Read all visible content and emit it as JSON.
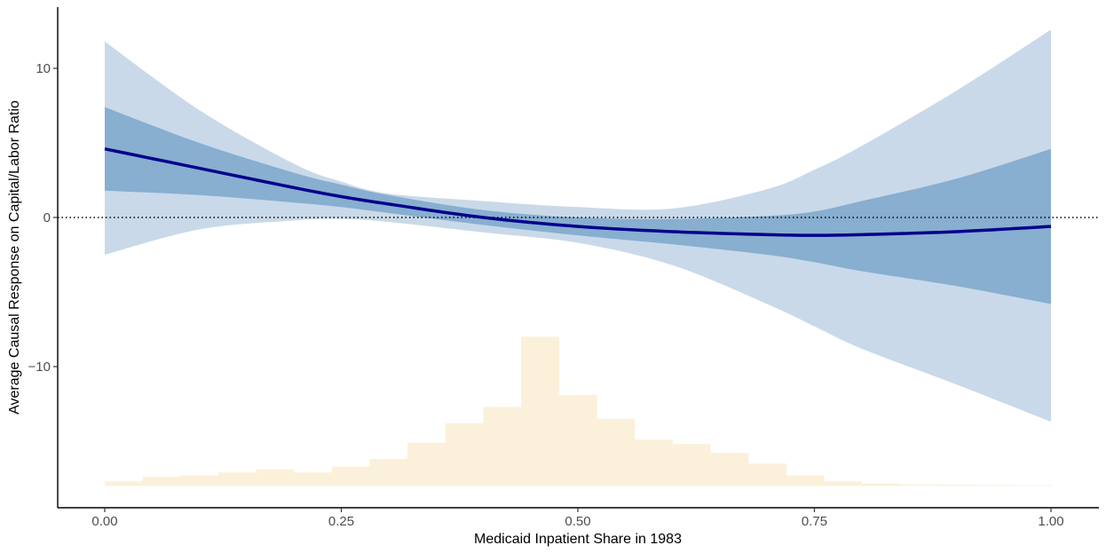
{
  "chart_data": {
    "type": "line",
    "title": "",
    "xlabel": "Medicaid Inpatient Share in 1983",
    "ylabel": "Average Causal Response on Capital/Labor Ratio",
    "xlim": [
      -0.1,
      1.1
    ],
    "ylim": [
      -19.5,
      14
    ],
    "x_ticks": [
      {
        "value": 0,
        "label": "0.00"
      },
      {
        "value": 0.25,
        "label": "0.25"
      },
      {
        "value": 0.5,
        "label": "0.50"
      },
      {
        "value": 0.75,
        "label": "0.75"
      },
      {
        "value": 1.0,
        "label": "1.00"
      }
    ],
    "y_ticks": [
      {
        "value": 10,
        "label": "10"
      },
      {
        "value": 0,
        "label": "0"
      },
      {
        "value": -10,
        "label": "−10"
      }
    ],
    "reference_line": {
      "y": 0,
      "style": "dotted"
    },
    "grid": false,
    "colors": {
      "estimate": "#00008b",
      "inner_band": "#88aed0",
      "outer_band": "#c9d9e9",
      "histogram": "#fbf0da",
      "reference": "#000000",
      "axis": "#000000"
    },
    "x": [
      0.0,
      0.1,
      0.2,
      0.25,
      0.3,
      0.4,
      0.5,
      0.6,
      0.7,
      0.75,
      0.8,
      0.9,
      1.0
    ],
    "series": [
      {
        "role": "estimate",
        "values": [
          4.6,
          3.3,
          2.0,
          1.4,
          0.9,
          0.0,
          -0.6,
          -0.95,
          -1.15,
          -1.2,
          -1.15,
          -0.95,
          -0.6
        ]
      },
      {
        "role": "inner_lower",
        "values": [
          1.8,
          1.5,
          1.0,
          0.7,
          0.3,
          -0.5,
          -1.2,
          -1.8,
          -2.5,
          -3.0,
          -3.6,
          -4.6,
          -5.8
        ]
      },
      {
        "role": "inner_upper",
        "values": [
          7.4,
          5.0,
          3.0,
          2.2,
          1.5,
          0.5,
          0.0,
          -0.1,
          0.1,
          0.4,
          1.1,
          2.6,
          4.6
        ]
      },
      {
        "role": "outer_lower",
        "values": [
          -2.5,
          -0.8,
          -0.2,
          -0.1,
          -0.3,
          -1.0,
          -1.7,
          -3.2,
          -5.8,
          -7.3,
          -8.8,
          -11.2,
          -13.7
        ]
      },
      {
        "role": "outer_upper",
        "values": [
          11.8,
          7.2,
          3.6,
          2.4,
          1.6,
          1.1,
          0.7,
          0.6,
          1.9,
          3.2,
          4.8,
          8.5,
          12.6
        ]
      }
    ],
    "histogram": {
      "baseline": -18,
      "bin_width": 0.04,
      "bin_starts": [
        0.0,
        0.04,
        0.08,
        0.12,
        0.16,
        0.2,
        0.24,
        0.28,
        0.32,
        0.36,
        0.4,
        0.44,
        0.48,
        0.52,
        0.56,
        0.6,
        0.64,
        0.68,
        0.72,
        0.76,
        0.8,
        0.84,
        0.88,
        0.92,
        0.96
      ],
      "heights": [
        0.3,
        0.6,
        0.7,
        0.9,
        1.1,
        0.9,
        1.3,
        1.8,
        2.9,
        4.2,
        5.3,
        10.0,
        6.1,
        4.5,
        3.1,
        2.8,
        2.2,
        1.5,
        0.7,
        0.3,
        0.15,
        0.1,
        0.08,
        0.06,
        0.05
      ]
    }
  }
}
